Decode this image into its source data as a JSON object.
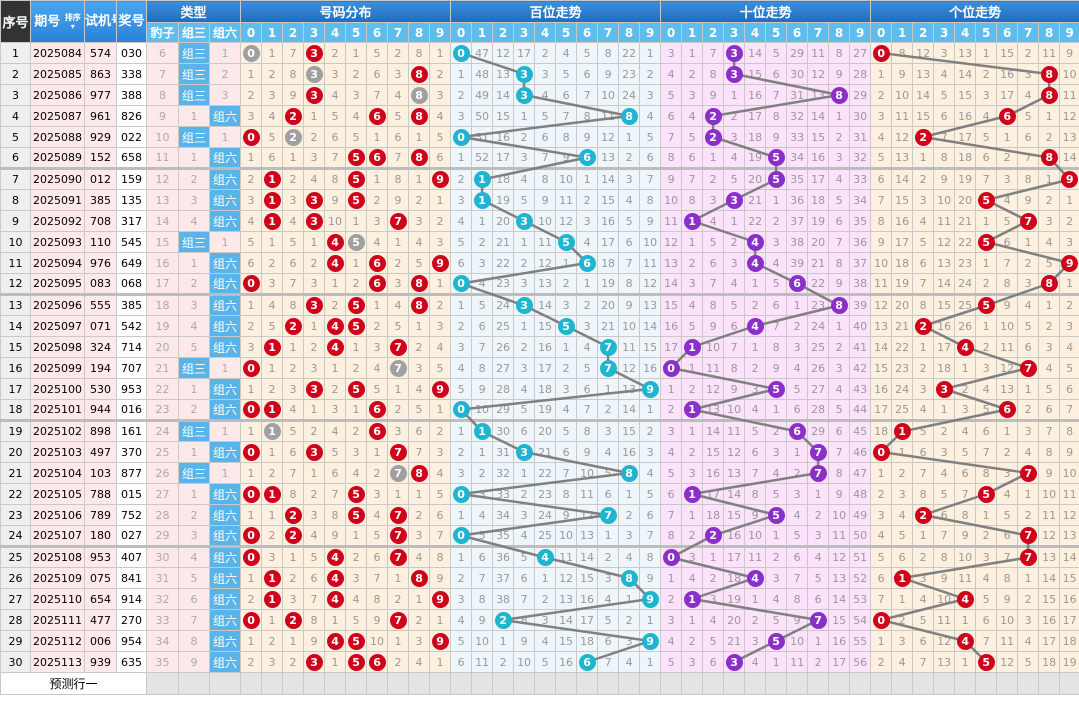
{
  "header": {
    "seq": "序号",
    "issue": "期号",
    "sort": "排序",
    "test": "试机号",
    "draw": "奖号",
    "type": "类型",
    "type_cols": [
      "豹子",
      "组三",
      "组六"
    ],
    "dist": "号码分布",
    "bai": "百位走势",
    "shi": "十位走势",
    "ge": "个位走势",
    "digits": [
      "0",
      "1",
      "2",
      "3",
      "4",
      "5",
      "6",
      "7",
      "8",
      "9"
    ]
  },
  "rows": [
    {
      "seq": "1",
      "issue": "2025084",
      "test": "574",
      "draw": "030"
    },
    {
      "seq": "2",
      "issue": "2025085",
      "test": "863",
      "draw": "338"
    },
    {
      "seq": "3",
      "issue": "2025086",
      "test": "977",
      "draw": "388"
    },
    {
      "seq": "4",
      "issue": "2025087",
      "test": "961",
      "draw": "826"
    },
    {
      "seq": "5",
      "issue": "2025088",
      "test": "929",
      "draw": "022"
    },
    {
      "seq": "6",
      "issue": "2025089",
      "test": "152",
      "draw": "658"
    },
    {
      "seq": "7",
      "issue": "2025090",
      "test": "012",
      "draw": "159"
    },
    {
      "seq": "8",
      "issue": "2025091",
      "test": "385",
      "draw": "135"
    },
    {
      "seq": "9",
      "issue": "2025092",
      "test": "708",
      "draw": "317"
    },
    {
      "seq": "10",
      "issue": "2025093",
      "test": "110",
      "draw": "545"
    },
    {
      "seq": "11",
      "issue": "2025094",
      "test": "976",
      "draw": "649"
    },
    {
      "seq": "12",
      "issue": "2025095",
      "test": "083",
      "draw": "068"
    },
    {
      "seq": "13",
      "issue": "2025096",
      "test": "555",
      "draw": "385"
    },
    {
      "seq": "14",
      "issue": "2025097",
      "test": "071",
      "draw": "542"
    },
    {
      "seq": "15",
      "issue": "2025098",
      "test": "324",
      "draw": "714"
    },
    {
      "seq": "16",
      "issue": "2025099",
      "test": "194",
      "draw": "707"
    },
    {
      "seq": "17",
      "issue": "2025100",
      "test": "530",
      "draw": "953"
    },
    {
      "seq": "18",
      "issue": "2025101",
      "test": "944",
      "draw": "016"
    },
    {
      "seq": "19",
      "issue": "2025102",
      "test": "898",
      "draw": "161"
    },
    {
      "seq": "20",
      "issue": "2025103",
      "test": "497",
      "draw": "370"
    },
    {
      "seq": "21",
      "issue": "2025104",
      "test": "103",
      "draw": "877"
    },
    {
      "seq": "22",
      "issue": "2025105",
      "test": "788",
      "draw": "015"
    },
    {
      "seq": "23",
      "issue": "2025106",
      "test": "789",
      "draw": "752"
    },
    {
      "seq": "24",
      "issue": "2025107",
      "test": "180",
      "draw": "027"
    },
    {
      "seq": "25",
      "issue": "2025108",
      "test": "953",
      "draw": "407"
    },
    {
      "seq": "26",
      "issue": "2025109",
      "test": "075",
      "draw": "841"
    },
    {
      "seq": "27",
      "issue": "2025110",
      "test": "654",
      "draw": "914"
    },
    {
      "seq": "28",
      "issue": "2025111",
      "test": "477",
      "draw": "270"
    },
    {
      "seq": "29",
      "issue": "2025112",
      "test": "006",
      "draw": "954"
    },
    {
      "seq": "30",
      "issue": "2025113",
      "test": "939",
      "draw": "635"
    }
  ],
  "first_row_omissions": {
    "type": [
      6,
      0,
      1
    ],
    "dist": [
      0,
      1,
      7,
      0,
      2,
      1,
      5,
      2,
      8,
      1
    ],
    "bai": [
      0,
      47,
      12,
      17,
      2,
      4,
      5,
      8,
      22,
      1
    ],
    "shi": [
      3,
      1,
      7,
      0,
      14,
      5,
      29,
      11,
      8,
      27
    ],
    "ge": [
      0,
      8,
      12,
      3,
      13,
      1,
      15,
      2,
      11,
      9
    ]
  },
  "predict_label": "预测行一",
  "colors": {
    "dist_ball": "#d0021b",
    "dist_repeat_ball": "#a0a0a0",
    "bai_ball": "#1fb4cf",
    "shi_ball": "#8b2fc9",
    "ge_ball": "#d0021b",
    "type_hit": "#5ab4e8",
    "line": "#808080"
  }
}
